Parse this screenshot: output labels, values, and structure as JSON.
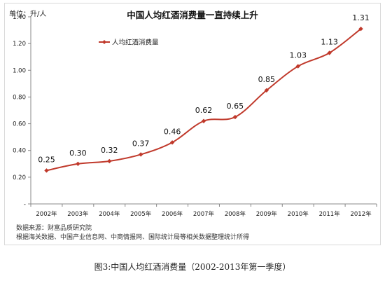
{
  "chart_data": {
    "type": "line",
    "title": "中国人均红酒消费量一直持续上升",
    "unit_label": "单位：升/人",
    "categories": [
      "2002年",
      "2003年",
      "2004年",
      "2005年",
      "2006年",
      "2007年",
      "2008年",
      "2009年",
      "2010年",
      "2011年",
      "2012年"
    ],
    "series": [
      {
        "name": "人均红酒消费量",
        "values": [
          0.25,
          0.3,
          0.32,
          0.37,
          0.46,
          0.62,
          0.65,
          0.85,
          1.03,
          1.13,
          1.31
        ]
      }
    ],
    "data_labels": [
      "0.25",
      "0.30",
      "0.32",
      "0.37",
      "0.46",
      "0.62",
      "0.65",
      "0.85",
      "1.03",
      "1.13",
      "1.31"
    ],
    "ylim": [
      0,
      1.4
    ],
    "y_ticks": [
      "-",
      "0.20",
      "0.40",
      "0.60",
      "0.80",
      "1.00",
      "1.20",
      "1.40"
    ],
    "legend_position": "top-left",
    "grid": false,
    "line_color": "#c0392b"
  },
  "source": {
    "line1": "数据来源：财富品质研究院",
    "line2": "根据海关数据、中国产业信息网、中商情报网、国际统计局等相关数据整理统计所得"
  },
  "caption": "图3:中国人均红酒消费量（2002-2013年第一季度）"
}
